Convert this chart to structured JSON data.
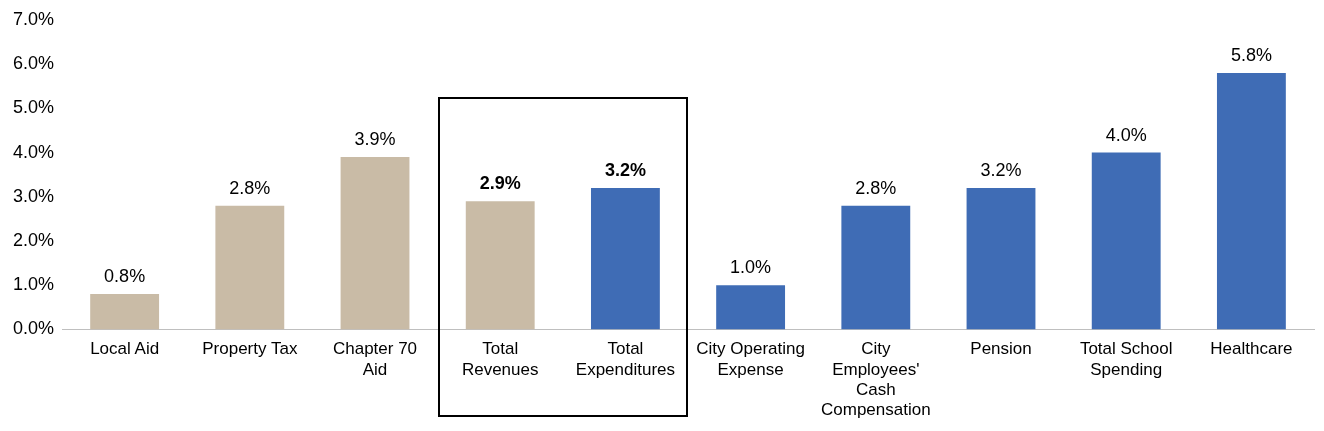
{
  "chart_data": {
    "type": "bar",
    "categories": [
      "Local Aid",
      "Property Tax",
      "Chapter 70\nAid",
      "Total\nRevenues",
      "Total\nExpenditures",
      "City Operating\nExpense",
      "City\nEmployees'\nCash\nCompensation",
      "Pension",
      "Total School\nSpending",
      "Healthcare"
    ],
    "values": [
      0.8,
      2.8,
      3.9,
      2.9,
      3.2,
      1.0,
      2.8,
      3.2,
      4.0,
      5.8
    ],
    "colors": [
      "#c9bba6",
      "#c9bba6",
      "#c9bba6",
      "#c9bba6",
      "#3f6cb5",
      "#3f6cb5",
      "#3f6cb5",
      "#3f6cb5",
      "#3f6cb5",
      "#3f6cb5"
    ],
    "value_labels": [
      "0.8%",
      "2.8%",
      "3.9%",
      "2.9%",
      "3.2%",
      "1.0%",
      "2.8%",
      "3.2%",
      "4.0%",
      "5.8%"
    ],
    "ylim": [
      0,
      7
    ],
    "yticks": [
      {
        "value": 0,
        "label": "0.0%"
      },
      {
        "value": 1,
        "label": "1.0%"
      },
      {
        "value": 2,
        "label": "2.0%"
      },
      {
        "value": 3,
        "label": "3.0%"
      },
      {
        "value": 4,
        "label": "4.0%"
      },
      {
        "value": 5,
        "label": "5.0%"
      },
      {
        "value": 6,
        "label": "6.0%"
      },
      {
        "value": 7,
        "label": "7.0%"
      }
    ],
    "grid": false,
    "legend": false
  }
}
